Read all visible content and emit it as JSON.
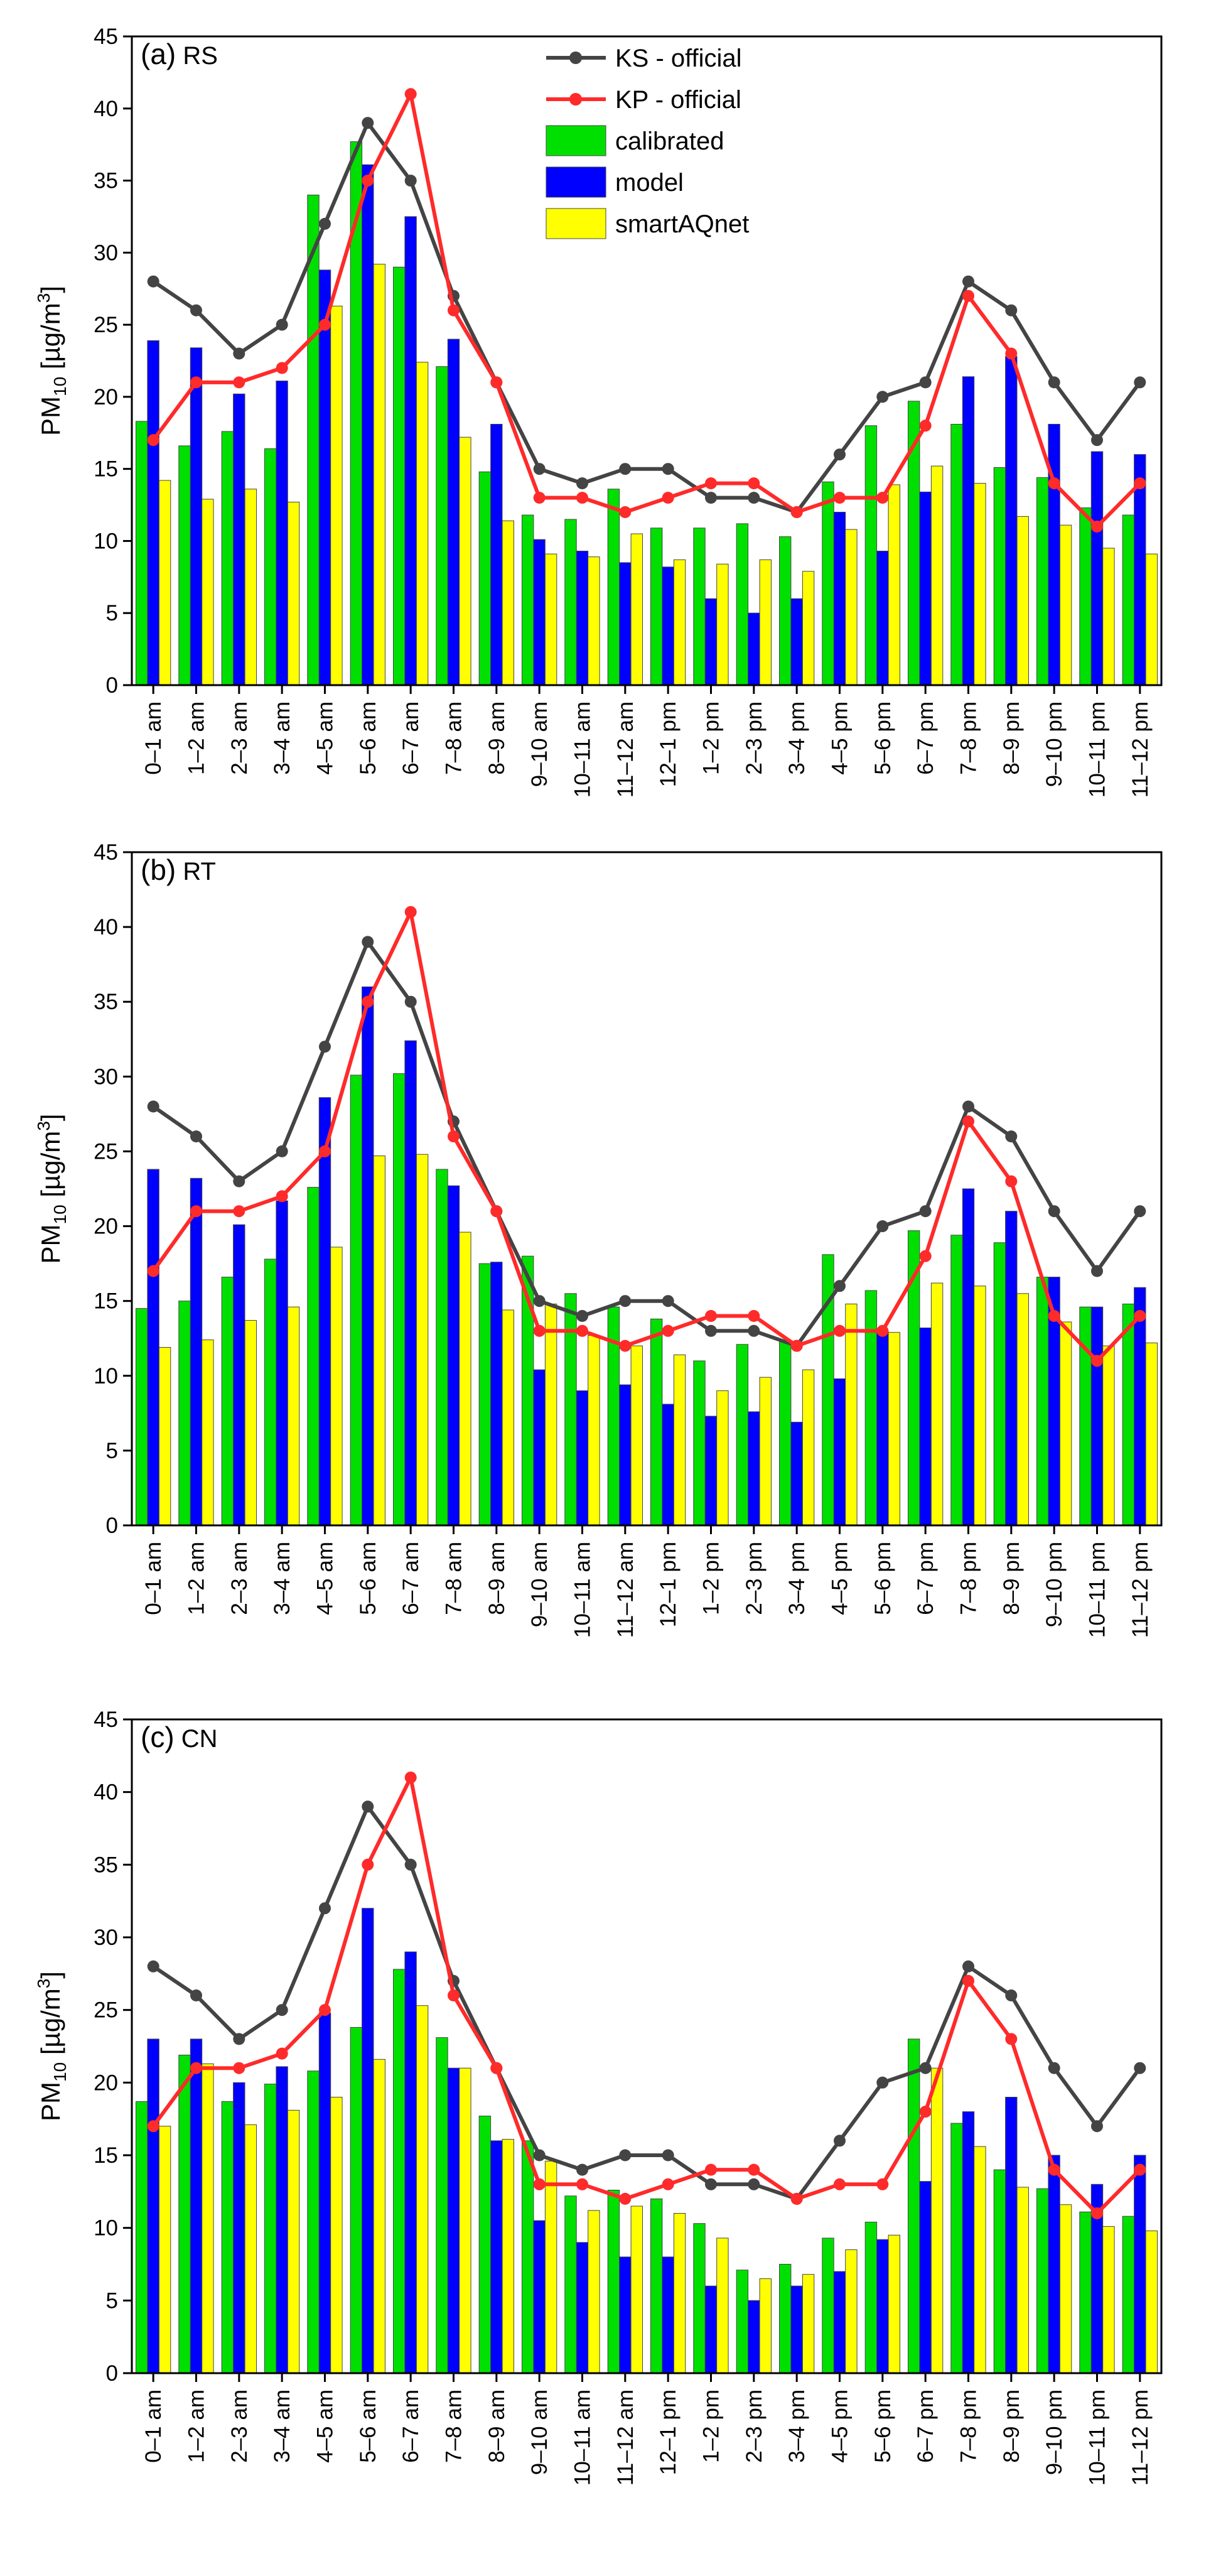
{
  "chart_data": [
    {
      "type": "bar",
      "panel_label": "(a)",
      "panel_name": "RS",
      "ylabel": "PM10 [µg/m3]",
      "ylabel_base": "PM",
      "ylabel_sub": "10",
      "ylabel_unit_pre": " [µg/m",
      "ylabel_unit_sup": "3",
      "ylabel_unit_post": "]",
      "ylim": [
        0,
        45
      ],
      "yticks": [
        0,
        5,
        10,
        15,
        20,
        25,
        30,
        35,
        40,
        45
      ],
      "categories": [
        "0–1 am",
        "1–2 am",
        "2–3 am",
        "3–4 am",
        "4–5 am",
        "5–6 am",
        "6–7 am",
        "7–8 am",
        "8–9 am",
        "9–10 am",
        "10–11 am",
        "11–12 am",
        "12–1 pm",
        "1–2 pm",
        "2–3 pm",
        "3–4 pm",
        "4–5 pm",
        "5–6 pm",
        "6–7 pm",
        "7–8 pm",
        "8–9 pm",
        "9–10 pm",
        "10–11 pm",
        "11–12 pm"
      ],
      "bar_series": [
        {
          "name": "calibrated",
          "color": "#00e000",
          "values": [
            18.3,
            16.6,
            17.6,
            16.4,
            34.0,
            37.7,
            29.0,
            22.1,
            14.8,
            11.8,
            11.5,
            13.6,
            10.9,
            10.9,
            11.2,
            10.3,
            14.1,
            18.0,
            19.7,
            18.1,
            15.1,
            14.4,
            12.3,
            11.8
          ]
        },
        {
          "name": "model",
          "color": "#0000ff",
          "values": [
            23.9,
            23.4,
            20.2,
            21.1,
            28.8,
            36.1,
            32.5,
            24.0,
            18.1,
            10.1,
            9.3,
            8.5,
            8.2,
            6.0,
            5.0,
            6.0,
            12.0,
            9.3,
            13.4,
            21.4,
            22.8,
            18.1,
            16.2,
            16.0
          ]
        },
        {
          "name": "smartAQnet",
          "color": "#ffff00",
          "values": [
            14.2,
            12.9,
            13.6,
            12.7,
            26.3,
            29.2,
            22.4,
            17.2,
            11.4,
            9.1,
            8.9,
            10.5,
            8.7,
            8.4,
            8.7,
            7.9,
            10.8,
            13.9,
            15.2,
            14.0,
            11.7,
            11.1,
            9.5,
            9.1
          ]
        }
      ],
      "line_series": [
        {
          "name": "KS - official",
          "color": "#444444",
          "values": [
            28,
            26,
            23,
            25,
            32,
            39,
            35,
            27,
            21,
            15,
            14,
            15,
            15,
            13,
            13,
            12,
            16,
            20,
            21,
            28,
            26,
            21,
            17,
            21
          ]
        },
        {
          "name": "KP - official",
          "color": "#ff2a2a",
          "values": [
            17,
            21,
            21,
            22,
            25,
            35,
            41,
            26,
            21,
            13,
            13,
            12,
            13,
            14,
            14,
            12,
            13,
            13,
            18,
            27,
            23,
            14,
            11,
            14
          ]
        }
      ],
      "legend": [
        "KS - official",
        "KP - official",
        "calibrated",
        "model",
        "smartAQnet"
      ]
    },
    {
      "type": "bar",
      "panel_label": "(b)",
      "panel_name": "RT",
      "ylabel": "PM10 [µg/m3]",
      "ylabel_base": "PM",
      "ylabel_sub": "10",
      "ylabel_unit_pre": " [µg/m",
      "ylabel_unit_sup": "3",
      "ylabel_unit_post": "]",
      "ylim": [
        0,
        45
      ],
      "yticks": [
        0,
        5,
        10,
        15,
        20,
        25,
        30,
        35,
        40,
        45
      ],
      "categories": [
        "0–1 am",
        "1–2 am",
        "2–3 am",
        "3–4 am",
        "4–5 am",
        "5–6 am",
        "6–7 am",
        "7–8 am",
        "8–9 am",
        "9–10 am",
        "10–11 am",
        "11–12 am",
        "12–1 pm",
        "1–2 pm",
        "2–3 pm",
        "3–4 pm",
        "4–5 pm",
        "5–6 pm",
        "6–7 pm",
        "7–8 pm",
        "8–9 pm",
        "9–10 pm",
        "10–11 pm",
        "11–12 pm"
      ],
      "bar_series": [
        {
          "name": "calibrated",
          "color": "#00e000",
          "values": [
            14.5,
            15.0,
            16.6,
            17.8,
            22.6,
            30.1,
            30.2,
            23.8,
            17.5,
            18.0,
            15.5,
            14.6,
            13.8,
            11.0,
            12.1,
            12.3,
            18.1,
            15.7,
            19.7,
            19.4,
            18.9,
            16.6,
            14.6,
            14.8
          ]
        },
        {
          "name": "model",
          "color": "#0000ff",
          "values": [
            23.8,
            23.2,
            20.1,
            21.7,
            28.6,
            36.0,
            32.4,
            22.7,
            17.6,
            10.4,
            9.0,
            9.4,
            8.1,
            7.3,
            7.6,
            6.9,
            9.8,
            13.0,
            13.2,
            22.5,
            21.0,
            16.6,
            14.6,
            15.9
          ]
        },
        {
          "name": "smartAQnet",
          "color": "#ffff00",
          "values": [
            11.9,
            12.4,
            13.7,
            14.6,
            18.6,
            24.7,
            24.8,
            19.6,
            14.4,
            14.8,
            12.7,
            12.0,
            11.4,
            9.0,
            9.9,
            10.4,
            14.8,
            12.9,
            16.2,
            16.0,
            15.5,
            13.6,
            12.0,
            12.2
          ]
        }
      ],
      "line_series": [
        {
          "name": "KS - official",
          "color": "#444444",
          "values": [
            28,
            26,
            23,
            25,
            32,
            39,
            35,
            27,
            21,
            15,
            14,
            15,
            15,
            13,
            13,
            12,
            16,
            20,
            21,
            28,
            26,
            21,
            17,
            21
          ]
        },
        {
          "name": "KP - official",
          "color": "#ff2a2a",
          "values": [
            17,
            21,
            21,
            22,
            25,
            35,
            41,
            26,
            21,
            13,
            13,
            12,
            13,
            14,
            14,
            12,
            13,
            13,
            18,
            27,
            23,
            14,
            11,
            14
          ]
        }
      ]
    },
    {
      "type": "bar",
      "panel_label": "(c)",
      "panel_name": "CN",
      "ylabel": "PM10 [µg/m3]",
      "ylabel_base": "PM",
      "ylabel_sub": "10",
      "ylabel_unit_pre": " [µg/m",
      "ylabel_unit_sup": "3",
      "ylabel_unit_post": "]",
      "ylim": [
        0,
        45
      ],
      "yticks": [
        0,
        5,
        10,
        15,
        20,
        25,
        30,
        35,
        40,
        45
      ],
      "categories": [
        "0–1 am",
        "1–2 am",
        "2–3 am",
        "3–4 am",
        "4–5 am",
        "5–6 am",
        "6–7 am",
        "7–8 am",
        "8–9 am",
        "9–10 am",
        "10–11 am",
        "11–12 am",
        "12–1 pm",
        "1–2 pm",
        "2–3 pm",
        "3–4 pm",
        "4–5 pm",
        "5–6 pm",
        "6–7 pm",
        "7–8 pm",
        "8–9 pm",
        "9–10 pm",
        "10–11 pm",
        "11–12 pm"
      ],
      "bar_series": [
        {
          "name": "calibrated",
          "color": "#00e000",
          "values": [
            18.7,
            21.9,
            18.7,
            19.9,
            20.8,
            23.8,
            27.8,
            23.1,
            17.7,
            16.0,
            12.2,
            12.6,
            12.0,
            10.3,
            7.1,
            7.5,
            9.3,
            10.4,
            23.0,
            17.2,
            14.0,
            12.7,
            11.1,
            10.8
          ]
        },
        {
          "name": "model",
          "color": "#0000ff",
          "values": [
            23.0,
            23.0,
            20.0,
            21.1,
            24.8,
            32.0,
            29.0,
            21.0,
            16.0,
            10.5,
            9.0,
            8.0,
            8.0,
            6.0,
            5.0,
            6.0,
            7.0,
            9.2,
            13.2,
            18.0,
            19.0,
            15.0,
            13.0,
            15.0
          ]
        },
        {
          "name": "smartAQnet",
          "color": "#ffff00",
          "values": [
            17.0,
            21.3,
            17.1,
            18.1,
            19.0,
            21.6,
            25.3,
            21.0,
            16.1,
            14.6,
            11.2,
            11.5,
            11.0,
            9.3,
            6.5,
            6.8,
            8.5,
            9.5,
            21.0,
            15.6,
            12.8,
            11.6,
            10.1,
            9.8
          ]
        }
      ],
      "line_series": [
        {
          "name": "KS - official",
          "color": "#444444",
          "values": [
            28,
            26,
            23,
            25,
            32,
            39,
            35,
            27,
            21,
            15,
            14,
            15,
            15,
            13,
            13,
            12,
            16,
            20,
            21,
            28,
            26,
            21,
            17,
            21
          ]
        },
        {
          "name": "KP - official",
          "color": "#ff2a2a",
          "values": [
            17,
            21,
            21,
            22,
            25,
            35,
            41,
            26,
            21,
            13,
            13,
            12,
            13,
            14,
            14,
            12,
            13,
            13,
            18,
            27,
            23,
            14,
            11,
            14
          ]
        }
      ]
    }
  ]
}
